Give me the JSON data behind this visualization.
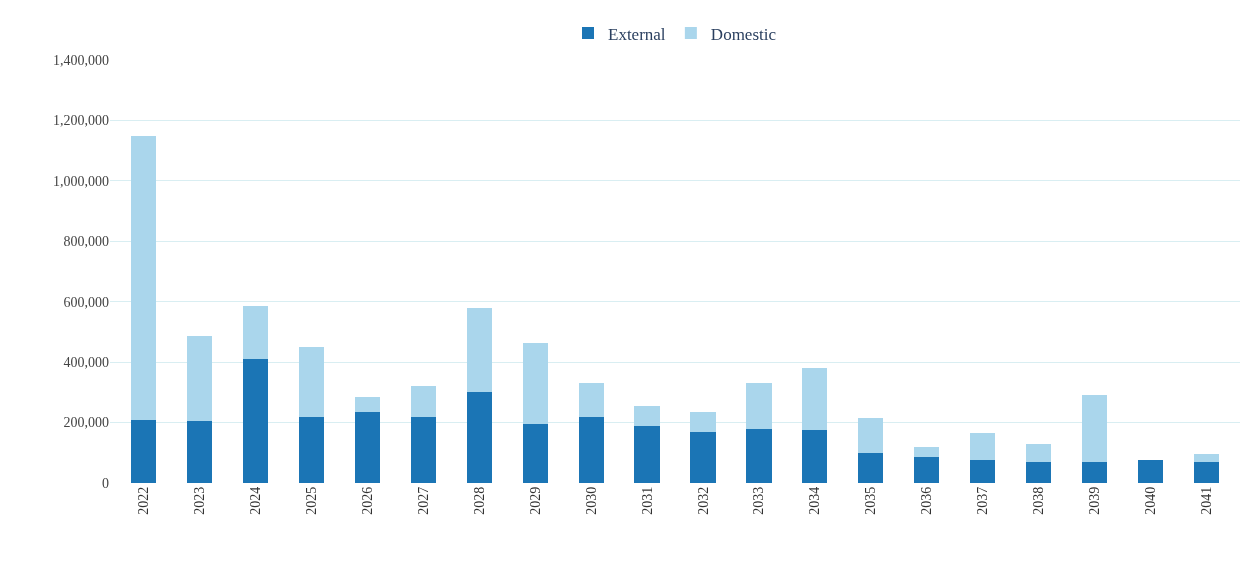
{
  "chart_data": {
    "type": "bar",
    "stacked": true,
    "categories": [
      "2022",
      "2023",
      "2024",
      "2025",
      "2026",
      "2027",
      "2028",
      "2029",
      "2030",
      "2031",
      "2032",
      "2033",
      "2034",
      "2035",
      "2036",
      "2037",
      "2038",
      "2039",
      "2040",
      "2041"
    ],
    "series": [
      {
        "name": "External",
        "color": "#1b75b5",
        "values": [
          210000,
          205000,
          410000,
          220000,
          235000,
          220000,
          300000,
          195000,
          220000,
          190000,
          170000,
          180000,
          175000,
          100000,
          85000,
          75000,
          70000,
          70000,
          75000,
          70000
        ]
      },
      {
        "name": "Domestic",
        "color": "#aad6ec",
        "values": [
          940000,
          280000,
          175000,
          230000,
          50000,
          100000,
          280000,
          270000,
          110000,
          65000,
          65000,
          150000,
          205000,
          115000,
          35000,
          90000,
          60000,
          220000,
          0,
          25000
        ]
      }
    ],
    "ylim": [
      0,
      1400000
    ],
    "yticks": [
      {
        "value": 0,
        "label": "0"
      },
      {
        "value": 200000,
        "label": "200,000"
      },
      {
        "value": 400000,
        "label": "400,000"
      },
      {
        "value": 600000,
        "label": "600,000"
      },
      {
        "value": 800000,
        "label": "800,000"
      },
      {
        "value": 1000000,
        "label": "1,000,000"
      },
      {
        "value": 1200000,
        "label": "1,200,000"
      },
      {
        "value": 1400000,
        "label": "1,400,000"
      }
    ],
    "grid": "y",
    "legend": "top"
  }
}
